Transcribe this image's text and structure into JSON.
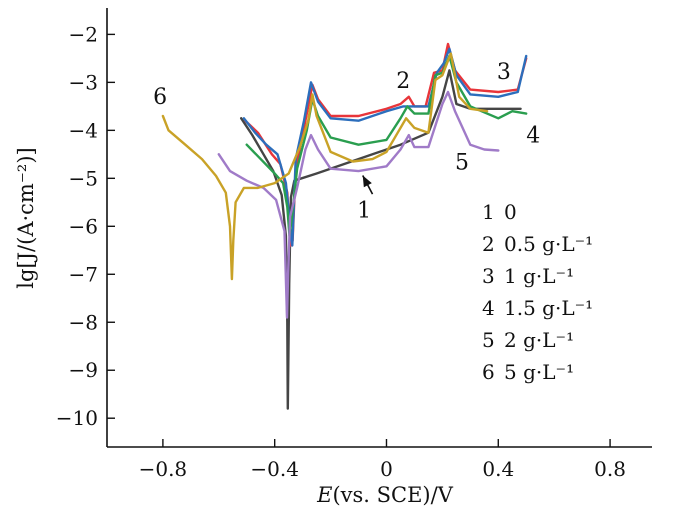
{
  "chart_data": {
    "type": "line",
    "xlabel_italic": "E",
    "xlabel_rest": "(vs. SCE)/V",
    "ylabel": "lg[J/(A·cm⁻²)]",
    "xlim": [
      -1.0,
      0.95
    ],
    "ylim": [
      -10.6,
      -1.45
    ],
    "x_ticks": [
      -0.8,
      -0.4,
      0,
      0.4,
      0.8
    ],
    "x_tick_labels": [
      "−0.8",
      "−0.4",
      "0",
      "0.4",
      "0.8"
    ],
    "y_ticks": [
      -2,
      -3,
      -4,
      -5,
      -6,
      -7,
      -8,
      -9,
      -10
    ],
    "y_tick_labels": [
      "−2",
      "−3",
      "−4",
      "−5",
      "−6",
      "−7",
      "−8",
      "−9",
      "−10"
    ],
    "grid": false,
    "legend_position": "bottom-right",
    "series": [
      {
        "key": "1",
        "name": "0",
        "color": "#454545",
        "points": [
          [
            -0.52,
            -3.75
          ],
          [
            -0.48,
            -4.1
          ],
          [
            -0.44,
            -4.5
          ],
          [
            -0.405,
            -4.85
          ],
          [
            -0.375,
            -5.35
          ],
          [
            -0.36,
            -6.2
          ],
          [
            -0.355,
            -8.0
          ],
          [
            -0.353,
            -9.8
          ],
          [
            -0.348,
            -7.2
          ],
          [
            -0.342,
            -5.4
          ],
          [
            -0.33,
            -5.05
          ],
          [
            -0.25,
            -4.9
          ],
          [
            -0.15,
            -4.7
          ],
          [
            -0.05,
            -4.5
          ],
          [
            0.05,
            -4.3
          ],
          [
            0.15,
            -4.05
          ],
          [
            0.2,
            -3.3
          ],
          [
            0.225,
            -2.75
          ],
          [
            0.25,
            -3.45
          ],
          [
            0.3,
            -3.55
          ],
          [
            0.4,
            -3.55
          ],
          [
            0.48,
            -3.55
          ]
        ]
      },
      {
        "key": "2",
        "name": "0.5 g·L⁻¹",
        "color": "#e8353a",
        "points": [
          [
            -0.505,
            -3.8
          ],
          [
            -0.46,
            -4.05
          ],
          [
            -0.41,
            -4.5
          ],
          [
            -0.38,
            -4.7
          ],
          [
            -0.355,
            -5.3
          ],
          [
            -0.343,
            -6.4
          ],
          [
            -0.336,
            -6.3
          ],
          [
            -0.325,
            -4.8
          ],
          [
            -0.29,
            -3.8
          ],
          [
            -0.265,
            -3.05
          ],
          [
            -0.245,
            -3.35
          ],
          [
            -0.2,
            -3.7
          ],
          [
            -0.1,
            -3.7
          ],
          [
            0.0,
            -3.55
          ],
          [
            0.05,
            -3.45
          ],
          [
            0.08,
            -3.3
          ],
          [
            0.1,
            -3.5
          ],
          [
            0.14,
            -3.5
          ],
          [
            0.17,
            -2.8
          ],
          [
            0.2,
            -2.75
          ],
          [
            0.22,
            -2.2
          ],
          [
            0.245,
            -2.75
          ],
          [
            0.3,
            -3.15
          ],
          [
            0.4,
            -3.2
          ],
          [
            0.47,
            -3.15
          ],
          [
            0.5,
            -2.5
          ]
        ]
      },
      {
        "key": "3",
        "name": "1 g·L⁻¹",
        "color": "#2c6ebc",
        "points": [
          [
            -0.51,
            -3.75
          ],
          [
            -0.47,
            -4.05
          ],
          [
            -0.43,
            -4.3
          ],
          [
            -0.39,
            -4.5
          ],
          [
            -0.36,
            -5.1
          ],
          [
            -0.345,
            -6.0
          ],
          [
            -0.337,
            -6.4
          ],
          [
            -0.325,
            -4.6
          ],
          [
            -0.295,
            -3.8
          ],
          [
            -0.27,
            -3.0
          ],
          [
            -0.245,
            -3.4
          ],
          [
            -0.2,
            -3.75
          ],
          [
            -0.1,
            -3.8
          ],
          [
            0.0,
            -3.6
          ],
          [
            0.06,
            -3.5
          ],
          [
            0.1,
            -3.5
          ],
          [
            0.15,
            -3.5
          ],
          [
            0.18,
            -2.8
          ],
          [
            0.205,
            -2.6
          ],
          [
            0.225,
            -2.3
          ],
          [
            0.25,
            -2.85
          ],
          [
            0.3,
            -3.25
          ],
          [
            0.4,
            -3.3
          ],
          [
            0.47,
            -3.2
          ],
          [
            0.5,
            -2.45
          ]
        ]
      },
      {
        "key": "4",
        "name": "1.5 g·L⁻¹",
        "color": "#2a9e4f",
        "points": [
          [
            -0.5,
            -4.3
          ],
          [
            -0.45,
            -4.6
          ],
          [
            -0.4,
            -4.9
          ],
          [
            -0.37,
            -5.1
          ],
          [
            -0.355,
            -5.6
          ],
          [
            -0.347,
            -6.2
          ],
          [
            -0.338,
            -5.8
          ],
          [
            -0.32,
            -4.8
          ],
          [
            -0.285,
            -4.0
          ],
          [
            -0.265,
            -3.35
          ],
          [
            -0.245,
            -3.7
          ],
          [
            -0.2,
            -4.15
          ],
          [
            -0.1,
            -4.3
          ],
          [
            0.0,
            -4.2
          ],
          [
            0.05,
            -3.75
          ],
          [
            0.075,
            -3.5
          ],
          [
            0.1,
            -3.65
          ],
          [
            0.15,
            -3.65
          ],
          [
            0.175,
            -2.85
          ],
          [
            0.2,
            -2.8
          ],
          [
            0.225,
            -2.45
          ],
          [
            0.25,
            -3.0
          ],
          [
            0.3,
            -3.5
          ],
          [
            0.4,
            -3.75
          ],
          [
            0.45,
            -3.6
          ],
          [
            0.5,
            -3.65
          ]
        ]
      },
      {
        "key": "5",
        "name": "2 g·L⁻¹",
        "color": "#a07bc8",
        "points": [
          [
            -0.6,
            -4.5
          ],
          [
            -0.56,
            -4.85
          ],
          [
            -0.5,
            -5.05
          ],
          [
            -0.44,
            -5.2
          ],
          [
            -0.395,
            -5.45
          ],
          [
            -0.365,
            -6.1
          ],
          [
            -0.356,
            -7.9
          ],
          [
            -0.352,
            -7.0
          ],
          [
            -0.345,
            -5.8
          ],
          [
            -0.32,
            -5.2
          ],
          [
            -0.29,
            -4.4
          ],
          [
            -0.27,
            -4.1
          ],
          [
            -0.245,
            -4.4
          ],
          [
            -0.2,
            -4.8
          ],
          [
            -0.1,
            -4.85
          ],
          [
            0.0,
            -4.75
          ],
          [
            0.05,
            -4.4
          ],
          [
            0.08,
            -4.1
          ],
          [
            0.1,
            -4.35
          ],
          [
            0.15,
            -4.35
          ],
          [
            0.2,
            -3.45
          ],
          [
            0.22,
            -3.2
          ],
          [
            0.245,
            -3.6
          ],
          [
            0.3,
            -4.3
          ],
          [
            0.35,
            -4.4
          ],
          [
            0.4,
            -4.42
          ]
        ]
      },
      {
        "key": "6",
        "name": "5 g·L⁻¹",
        "color": "#c9a227",
        "points": [
          [
            -0.8,
            -3.7
          ],
          [
            -0.78,
            -4.0
          ],
          [
            -0.72,
            -4.3
          ],
          [
            -0.66,
            -4.6
          ],
          [
            -0.61,
            -4.95
          ],
          [
            -0.575,
            -5.3
          ],
          [
            -0.56,
            -6.0
          ],
          [
            -0.553,
            -7.1
          ],
          [
            -0.548,
            -6.3
          ],
          [
            -0.54,
            -5.5
          ],
          [
            -0.51,
            -5.2
          ],
          [
            -0.46,
            -5.2
          ],
          [
            -0.4,
            -5.1
          ],
          [
            -0.35,
            -4.9
          ],
          [
            -0.31,
            -4.35
          ],
          [
            -0.28,
            -3.8
          ],
          [
            -0.265,
            -3.25
          ],
          [
            -0.25,
            -3.7
          ],
          [
            -0.2,
            -4.45
          ],
          [
            -0.12,
            -4.65
          ],
          [
            -0.05,
            -4.6
          ],
          [
            0.0,
            -4.45
          ],
          [
            0.04,
            -4.05
          ],
          [
            0.07,
            -3.75
          ],
          [
            0.1,
            -3.95
          ],
          [
            0.15,
            -4.05
          ],
          [
            0.175,
            -2.95
          ],
          [
            0.2,
            -2.85
          ],
          [
            0.23,
            -2.4
          ],
          [
            0.26,
            -3.3
          ],
          [
            0.3,
            -3.55
          ],
          [
            0.36,
            -3.6
          ]
        ]
      }
    ],
    "curve_labels": [
      {
        "text": "1",
        "x": -0.08,
        "y": -5.82
      },
      {
        "text": "2",
        "x": 0.06,
        "y": -3.12
      },
      {
        "text": "3",
        "x": 0.42,
        "y": -2.93
      },
      {
        "text": "4",
        "x": 0.525,
        "y": -4.25
      },
      {
        "text": "5",
        "x": 0.27,
        "y": -4.82
      },
      {
        "text": "6",
        "x": -0.81,
        "y": -3.45
      }
    ],
    "arrow": {
      "from": [
        -0.05,
        -5.33
      ],
      "to": [
        -0.085,
        -4.94
      ]
    },
    "legend": [
      {
        "num": "1",
        "text": "0"
      },
      {
        "num": "2",
        "text": "0.5 g·L⁻¹"
      },
      {
        "num": "3",
        "text": "1 g·L⁻¹"
      },
      {
        "num": "4",
        "text": "1.5 g·L⁻¹"
      },
      {
        "num": "5",
        "text": "2 g·L⁻¹"
      },
      {
        "num": "6",
        "text": "5 g·L⁻¹"
      }
    ]
  }
}
